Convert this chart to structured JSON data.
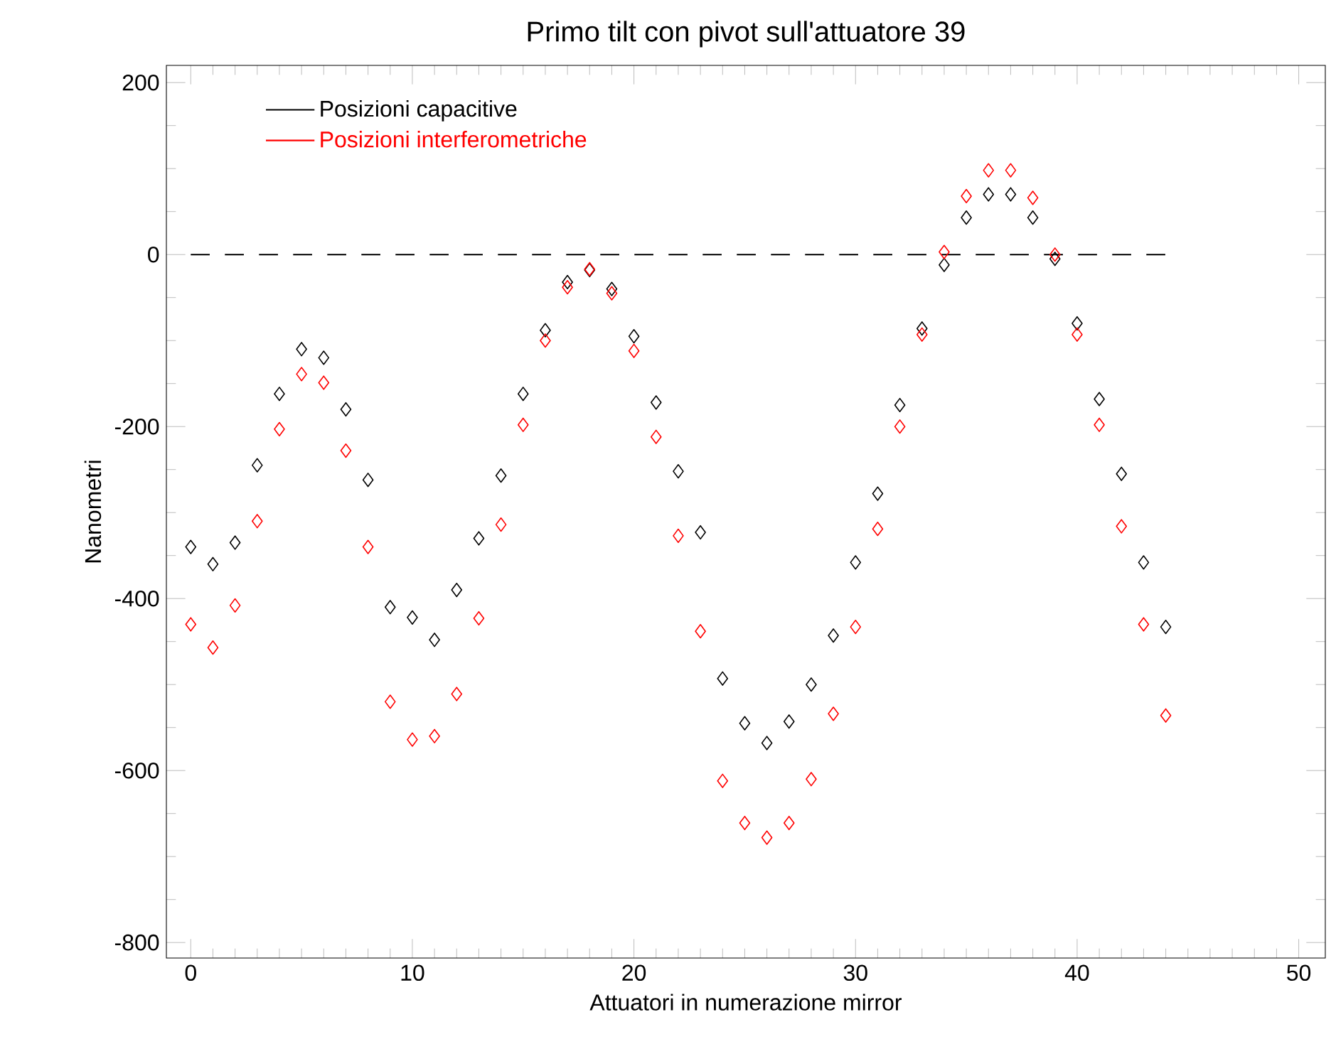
{
  "chart_data": {
    "type": "scatter",
    "title": "Primo tilt con pivot sull'attuatore 39",
    "xlabel": "Attuatori in numerazione mirror",
    "ylabel": "Nanometri",
    "x": [
      0,
      1,
      2,
      3,
      4,
      5,
      6,
      7,
      8,
      9,
      10,
      11,
      12,
      13,
      14,
      15,
      16,
      17,
      18,
      19,
      20,
      21,
      22,
      23,
      24,
      25,
      26,
      27,
      28,
      29,
      30,
      31,
      32,
      33,
      34,
      35,
      36,
      37,
      38,
      39,
      40,
      41,
      42,
      43,
      44
    ],
    "series": [
      {
        "name": "Posizioni capacitive",
        "color": "#000000",
        "values": [
          -340,
          -360,
          -335,
          -245,
          -162,
          -110,
          -120,
          -180,
          -262,
          -410,
          -422,
          -448,
          -390,
          -330,
          -257,
          -162,
          -88,
          -32,
          -18,
          -40,
          -95,
          -172,
          -252,
          -323,
          -493,
          -545,
          -568,
          -543,
          -500,
          -443,
          -358,
          -278,
          -175,
          -86,
          -12,
          43,
          70,
          70,
          43,
          -5,
          -80,
          -168,
          -255,
          -358,
          -433
        ]
      },
      {
        "name": "Posizioni interferometriche",
        "color": "#ff0000",
        "values": [
          -430,
          -457,
          -408,
          -310,
          -203,
          -139,
          -149,
          -228,
          -340,
          -520,
          -564,
          -560,
          -511,
          -423,
          -314,
          -198,
          -100,
          -38,
          -17,
          -45,
          -112,
          -212,
          -327,
          -438,
          -612,
          -661,
          -678,
          -661,
          -610,
          -534,
          -433,
          -319,
          -200,
          -93,
          3,
          68,
          98,
          98,
          66,
          0,
          -93,
          -198,
          -316,
          -430,
          -536
        ]
      }
    ],
    "xlim": [
      -1.1,
      51.2
    ],
    "ylim": [
      -818,
      220
    ],
    "xticks": [
      0,
      10,
      20,
      30,
      40,
      50
    ],
    "yticks": [
      -800,
      -600,
      -400,
      -200,
      0,
      200
    ],
    "ref_lines": [
      {
        "axis": "y",
        "value": 0,
        "color": "#000000",
        "line_style": "dashed"
      }
    ],
    "legend": "top left",
    "marker": "diamond",
    "grid": false
  }
}
